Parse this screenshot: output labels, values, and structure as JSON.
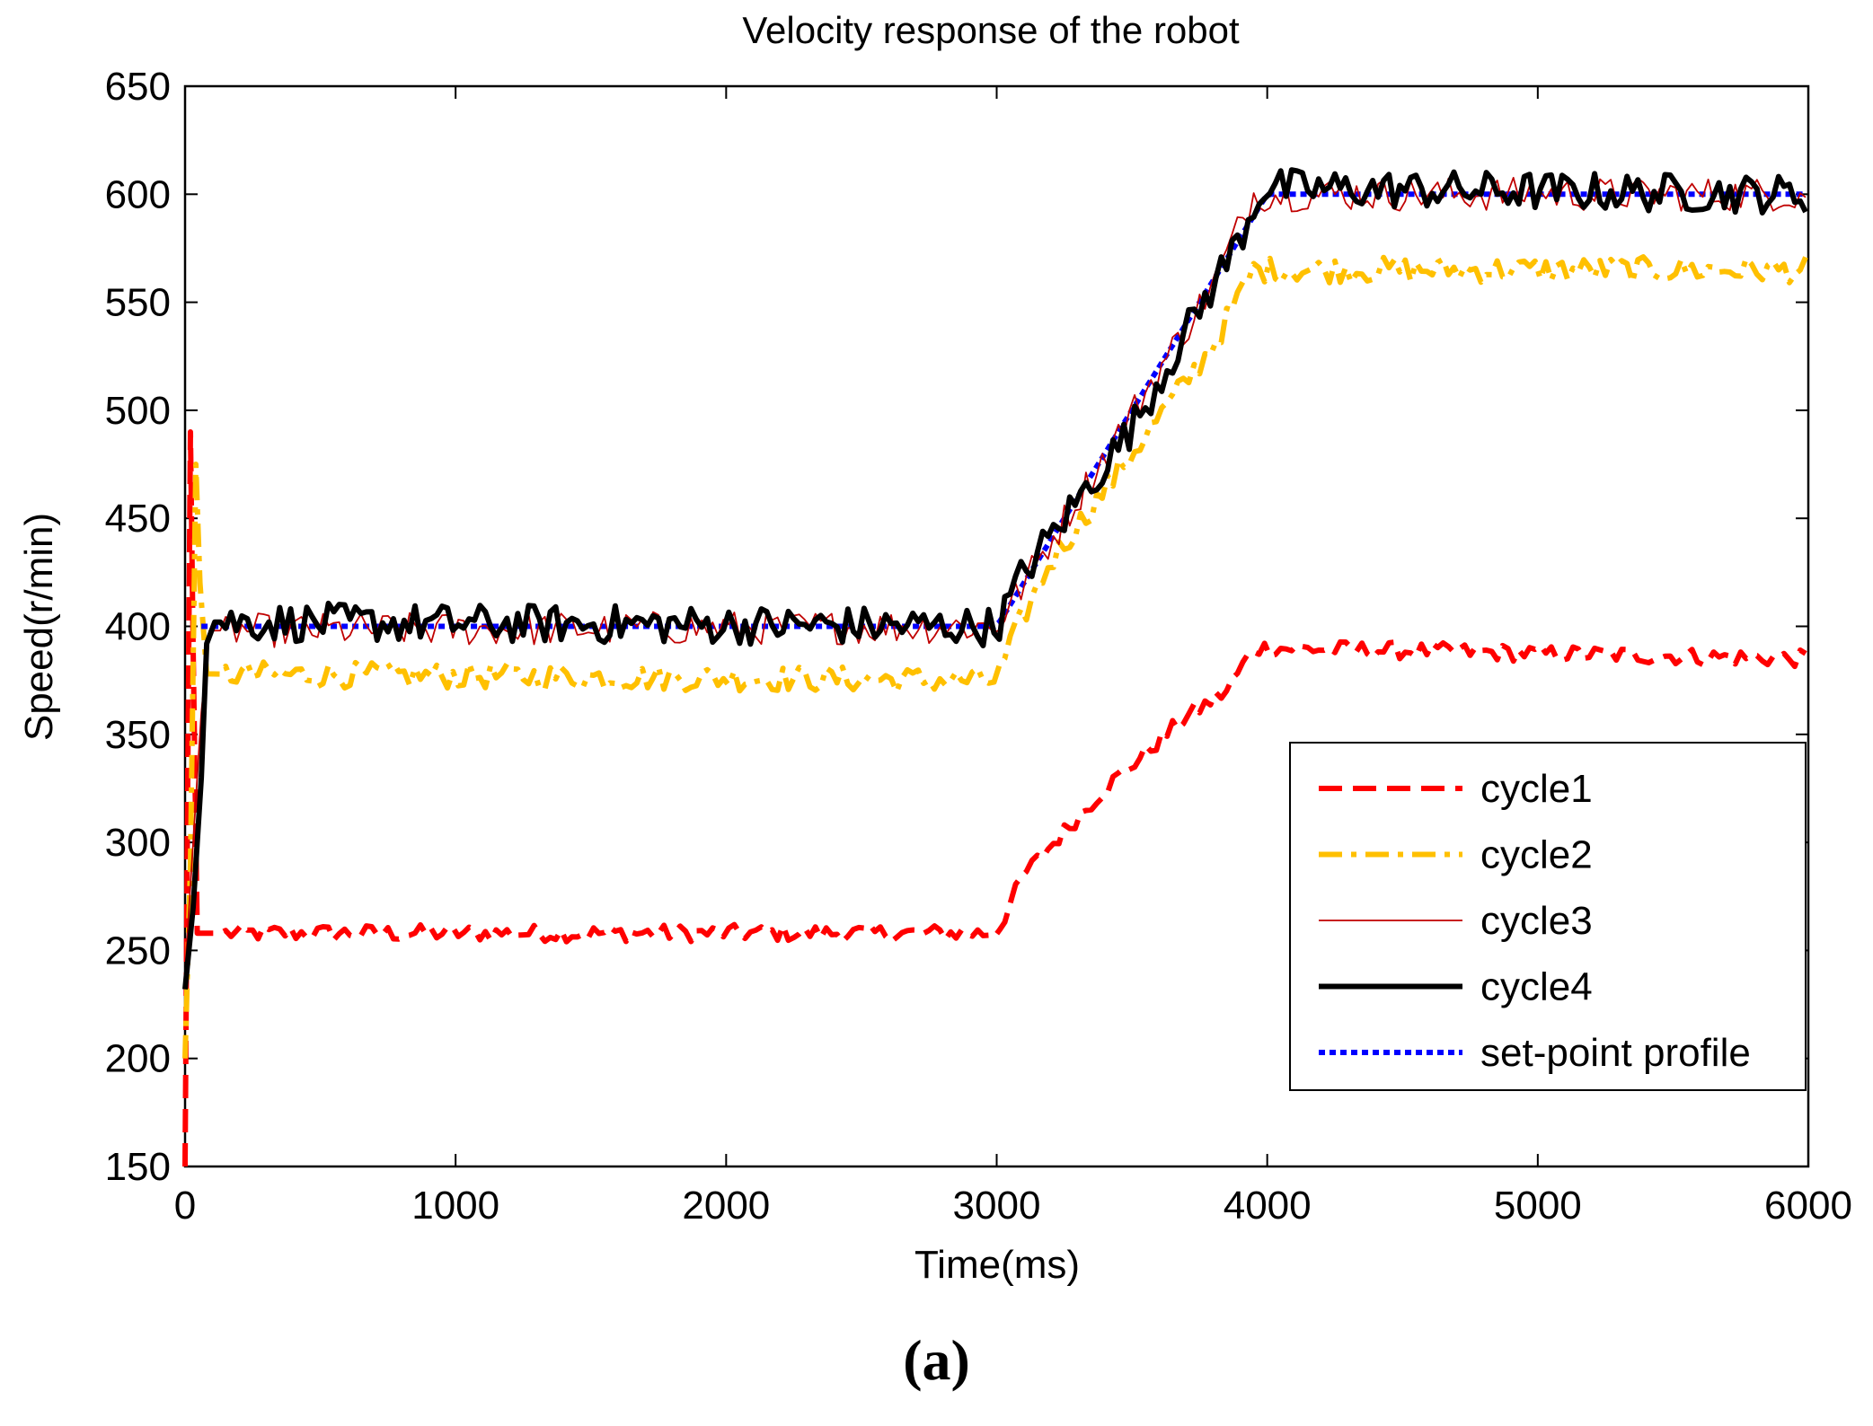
{
  "figure_label": "(a)",
  "chart_data": {
    "type": "line",
    "title": "Velocity response of the robot",
    "xlabel": "Time(ms)",
    "ylabel": "Speed(r/min)",
    "xlim": [
      0,
      6000
    ],
    "ylim": [
      150,
      650
    ],
    "xticks": [
      0,
      1000,
      2000,
      3000,
      4000,
      5000,
      6000
    ],
    "yticks": [
      150,
      200,
      250,
      300,
      350,
      400,
      450,
      500,
      550,
      600,
      650
    ],
    "grid": false,
    "legend_position": "lower-right",
    "series": [
      {
        "name": "cycle1",
        "color": "#ff0000",
        "style": "dashed",
        "points": [
          [
            0,
            150
          ],
          [
            10,
            330
          ],
          [
            20,
            490
          ],
          [
            30,
            390
          ],
          [
            45,
            258
          ],
          [
            3000,
            258
          ],
          [
            3100,
            285
          ],
          [
            3400,
            325
          ],
          [
            3700,
            358
          ],
          [
            3850,
            370
          ],
          [
            3950,
            390
          ],
          [
            4000,
            390
          ],
          [
            6000,
            385
          ]
        ],
        "noise": 4
      },
      {
        "name": "cycle2",
        "color": "#ffc000",
        "style": "dashdot",
        "points": [
          [
            0,
            200
          ],
          [
            20,
            290
          ],
          [
            40,
            475
          ],
          [
            55,
            420
          ],
          [
            80,
            378
          ],
          [
            3000,
            375
          ],
          [
            3080,
            400
          ],
          [
            3200,
            430
          ],
          [
            3500,
            480
          ],
          [
            3800,
            530
          ],
          [
            3950,
            565
          ],
          [
            6000,
            565
          ]
        ],
        "noise": 6
      },
      {
        "name": "cycle3",
        "color": "#c00000",
        "style": "thin",
        "points": [
          [
            0,
            240
          ],
          [
            30,
            300
          ],
          [
            60,
            360
          ],
          [
            90,
            398
          ],
          [
            3000,
            400
          ],
          [
            3800,
            558
          ],
          [
            3950,
            600
          ],
          [
            6000,
            600
          ]
        ],
        "noise": 8
      },
      {
        "name": "cycle4",
        "color": "#000000",
        "style": "solid",
        "points": [
          [
            0,
            232
          ],
          [
            30,
            270
          ],
          [
            60,
            330
          ],
          [
            80,
            392
          ],
          [
            110,
            402
          ],
          [
            3000,
            400
          ],
          [
            3100,
            425
          ],
          [
            3500,
            492
          ],
          [
            3900,
            580
          ],
          [
            3980,
            603
          ],
          [
            6000,
            600
          ]
        ],
        "noise": 9
      },
      {
        "name": "set-point profile",
        "color": "#0000ff",
        "style": "dotted",
        "points": [
          [
            60,
            400
          ],
          [
            3000,
            400
          ],
          [
            4000,
            600
          ],
          [
            6000,
            600
          ]
        ],
        "noise": 0
      }
    ]
  }
}
